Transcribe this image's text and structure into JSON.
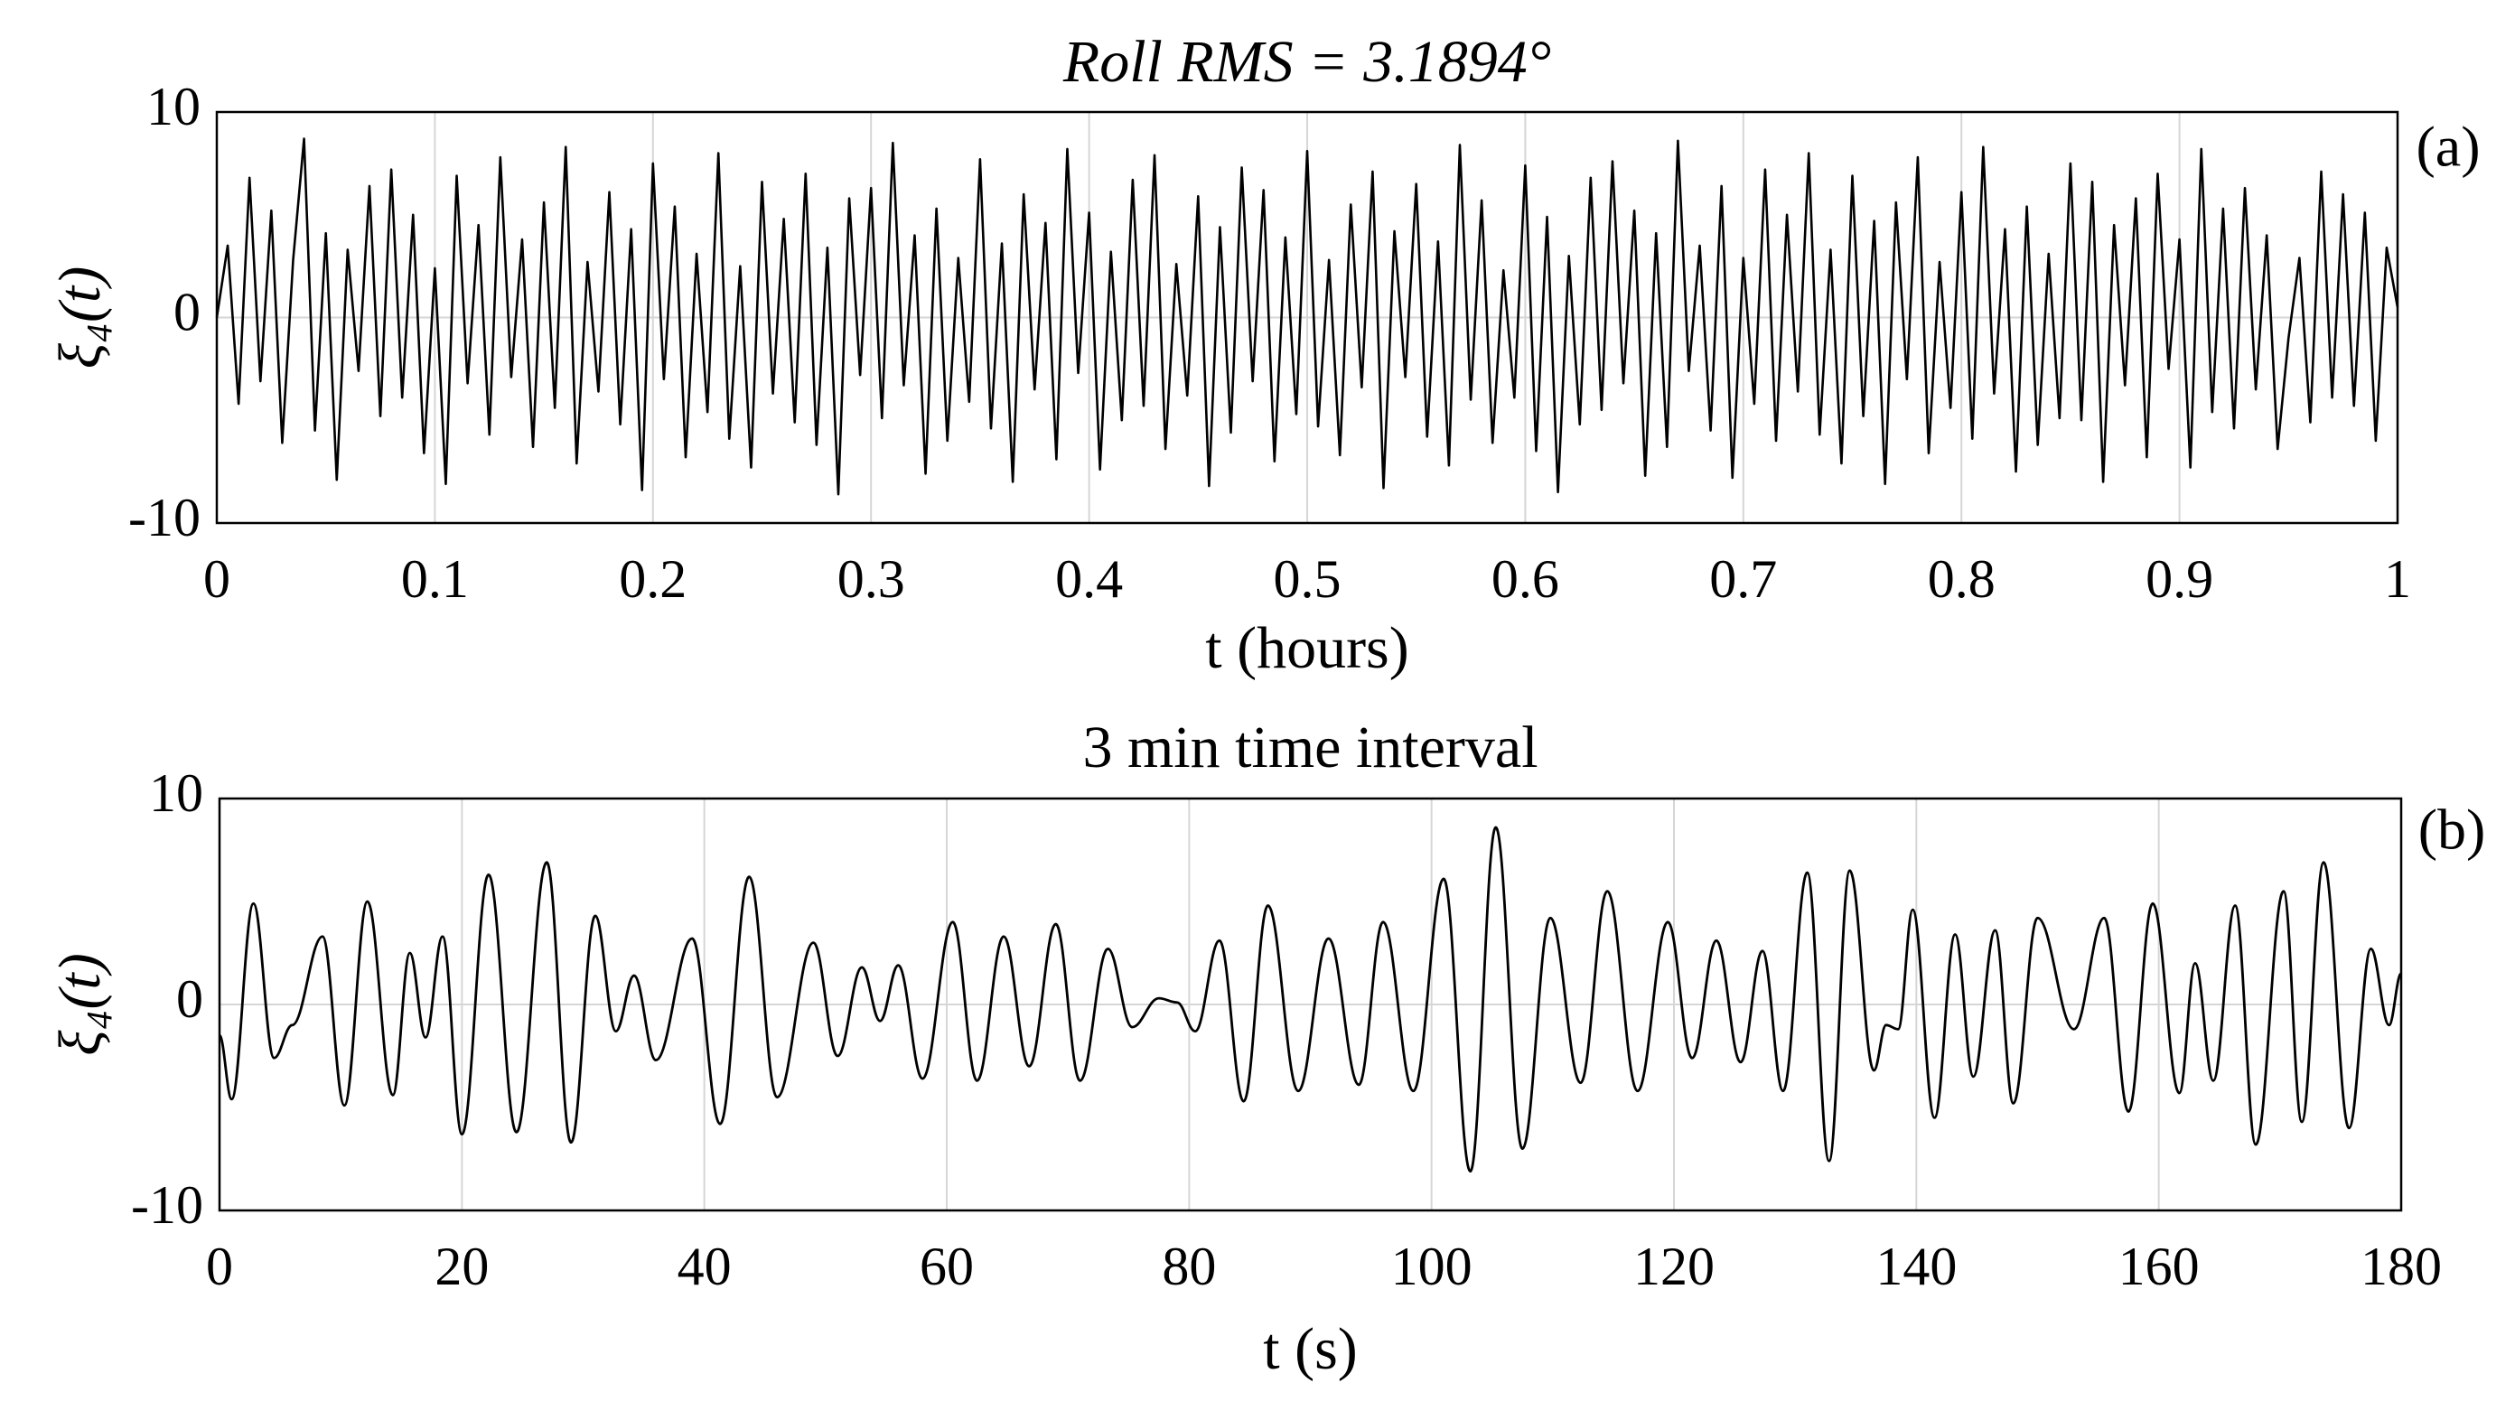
{
  "chart_data": [
    {
      "type": "line",
      "title": "Roll RMS = 3.1894°",
      "x_label": "t (hours)",
      "y_label": "ξ₄(t)",
      "annotation": "(a)",
      "grid": true,
      "xlim": [
        0,
        1
      ],
      "ylim": [
        -10,
        10
      ],
      "xticks": [
        0,
        0.1,
        0.2,
        0.3,
        0.4,
        0.5,
        0.6,
        0.7,
        0.8,
        0.9,
        1
      ],
      "yticks": [
        -10,
        0,
        10
      ],
      "x": [
        0,
        0.005,
        0.01,
        0.015,
        0.02,
        0.025,
        0.03,
        0.035,
        0.04,
        0.045,
        0.05,
        0.055,
        0.06,
        0.065,
        0.07,
        0.075,
        0.08,
        0.085,
        0.09,
        0.095,
        0.1,
        0.105,
        0.11,
        0.115,
        0.12,
        0.125,
        0.13,
        0.135,
        0.14,
        0.145,
        0.15,
        0.155,
        0.16,
        0.165,
        0.17,
        0.175,
        0.18,
        0.185,
        0.19,
        0.195,
        0.2,
        0.205,
        0.21,
        0.215,
        0.22,
        0.225,
        0.23,
        0.235,
        0.24,
        0.245,
        0.25,
        0.255,
        0.26,
        0.265,
        0.27,
        0.275,
        0.28,
        0.285,
        0.29,
        0.295,
        0.3,
        0.305,
        0.31,
        0.315,
        0.32,
        0.325,
        0.33,
        0.335,
        0.34,
        0.345,
        0.35,
        0.355,
        0.36,
        0.365,
        0.37,
        0.375,
        0.38,
        0.385,
        0.39,
        0.395,
        0.4,
        0.405,
        0.41,
        0.415,
        0.42,
        0.425,
        0.43,
        0.435,
        0.44,
        0.445,
        0.45,
        0.455,
        0.46,
        0.465,
        0.47,
        0.475,
        0.48,
        0.485,
        0.49,
        0.495,
        0.5,
        0.505,
        0.51,
        0.515,
        0.52,
        0.525,
        0.53,
        0.535,
        0.54,
        0.545,
        0.55,
        0.555,
        0.56,
        0.565,
        0.57,
        0.575,
        0.58,
        0.585,
        0.59,
        0.595,
        0.6,
        0.605,
        0.61,
        0.615,
        0.62,
        0.625,
        0.63,
        0.635,
        0.64,
        0.645,
        0.65,
        0.655,
        0.66,
        0.665,
        0.67,
        0.675,
        0.68,
        0.685,
        0.69,
        0.695,
        0.7,
        0.705,
        0.71,
        0.715,
        0.72,
        0.725,
        0.73,
        0.735,
        0.74,
        0.745,
        0.75,
        0.755,
        0.76,
        0.765,
        0.77,
        0.775,
        0.78,
        0.785,
        0.79,
        0.795,
        0.8,
        0.805,
        0.81,
        0.815,
        0.82,
        0.825,
        0.83,
        0.835,
        0.84,
        0.845,
        0.85,
        0.855,
        0.86,
        0.865,
        0.87,
        0.875,
        0.88,
        0.885,
        0.89,
        0.895,
        0.9,
        0.905,
        0.91,
        0.915,
        0.92,
        0.925,
        0.93,
        0.935,
        0.94,
        0.945,
        0.95,
        0.955,
        0.96,
        0.965,
        0.97,
        0.975,
        0.98,
        0.985,
        0.99,
        0.995,
        1
      ],
      "series": [
        {
          "name": "ξ4",
          "color": "#000000",
          "values": [
            0,
            3.5,
            -4.2,
            6.8,
            -3.1,
            5.2,
            -6.1,
            2.8,
            8.7,
            -5.5,
            4.1,
            -7.9,
            3.3,
            -2.6,
            6.4,
            -4.8,
            7.2,
            -3.9,
            5.0,
            -6.6,
            2.4,
            -8.1,
            6.9,
            -3.2,
            4.5,
            -5.7,
            7.8,
            -2.9,
            3.8,
            -6.3,
            5.6,
            -4.4,
            8.3,
            -7.1,
            2.7,
            -3.6,
            6.1,
            -5.2,
            4.3,
            -8.4,
            7.5,
            -3.0,
            5.4,
            -6.8,
            3.1,
            -4.6,
            8.0,
            -5.9,
            2.5,
            -7.3,
            6.6,
            -3.7,
            4.8,
            -5.1,
            7.0,
            -6.2,
            3.4,
            -8.6,
            5.8,
            -2.8,
            6.3,
            -4.9,
            8.5,
            -3.3,
            4.0,
            -7.6,
            5.3,
            -6.0,
            2.9,
            -4.1,
            7.7,
            -5.4,
            3.6,
            -8.0,
            6.0,
            -3.5,
            4.6,
            -6.9,
            8.2,
            -2.7,
            5.1,
            -7.4,
            3.2,
            -5.0,
            6.7,
            -4.3,
            7.9,
            -6.4,
            2.6,
            -3.8,
            5.9,
            -8.2,
            4.4,
            -5.6,
            7.3,
            -3.1,
            6.2,
            -7.0,
            3.9,
            -4.7,
            8.1,
            -5.3,
            2.8,
            -6.7,
            5.5,
            -3.4,
            7.1,
            -8.3,
            4.2,
            -2.9,
            6.5,
            -5.8,
            3.7,
            -7.2,
            8.4,
            -4.0,
            5.7,
            -6.1,
            2.3,
            -3.9,
            7.4,
            -6.5,
            4.9,
            -8.5,
            3.0,
            -5.2,
            6.8,
            -4.5,
            7.6,
            -3.2,
            5.2,
            -7.7,
            4.1,
            -6.3,
            8.6,
            -2.6,
            3.5,
            -5.5,
            6.4,
            -7.8,
            2.9,
            -4.2,
            7.2,
            -6.0,
            5.0,
            -3.6,
            8.0,
            -5.7,
            3.3,
            -7.1,
            6.9,
            -4.8,
            4.7,
            -8.1,
            5.6,
            -3.0,
            7.8,
            -6.6,
            2.7,
            -4.4,
            6.1,
            -5.9,
            8.3,
            -3.7,
            4.3,
            -7.5,
            5.4,
            -6.2,
            3.1,
            -4.9,
            7.5,
            -5.0,
            6.6,
            -8.0,
            4.5,
            -3.3,
            5.8,
            -6.8,
            7.0,
            -2.5,
            3.8,
            -7.3,
            8.2,
            -4.6,
            5.3,
            -5.4,
            6.3,
            -3.5,
            4.0,
            -6.4,
            -1.0,
            2.9,
            -5.1,
            7.1,
            -3.9,
            6.0,
            -4.3,
            5.1,
            -6.0,
            3.4,
            0.5
          ]
        }
      ]
    },
    {
      "type": "line",
      "title": "3 min  time interval",
      "x_label": "t (s)",
      "y_label": "ξ₄(t)",
      "annotation": "(b)",
      "grid": true,
      "smooth": true,
      "xlim": [
        0,
        180
      ],
      "ylim": [
        -10,
        10
      ],
      "xticks": [
        0,
        20,
        40,
        60,
        80,
        100,
        120,
        140,
        160,
        180
      ],
      "yticks": [
        -10,
        0,
        10
      ],
      "x": [
        0,
        1,
        2.8,
        4.5,
        6,
        8.5,
        10.3,
        12.2,
        14.3,
        15.7,
        17,
        18.4,
        20,
        22.2,
        24.5,
        27,
        29,
        31,
        32.7,
        34.2,
        36,
        39,
        41.3,
        43.7,
        46,
        49,
        51,
        53,
        54.5,
        56,
        58,
        60.5,
        62.5,
        64.7,
        66.8,
        69,
        71,
        73.3,
        75.3,
        77.5,
        79,
        80.5,
        82.5,
        84.5,
        86.5,
        89,
        91.5,
        94,
        96,
        98.5,
        101,
        103.2,
        105.3,
        107.5,
        109.8,
        112.3,
        114.5,
        117,
        119.5,
        121.5,
        123.5,
        125.5,
        127.3,
        129,
        131,
        132.8,
        134.5,
        136.5,
        137.5,
        138.5,
        139.7,
        141.5,
        143.2,
        144.7,
        146.5,
        148,
        150,
        153,
        155.5,
        157.5,
        159.5,
        161.7,
        163,
        164.5,
        166.3,
        168,
        170.3,
        171.8,
        173.6,
        175.7,
        177.5,
        179,
        180
      ],
      "series": [
        {
          "name": "ξ4",
          "color": "#000000",
          "values": [
            -1.5,
            -4.6,
            4.9,
            -2.6,
            -1,
            3.3,
            -4.9,
            5.0,
            -4.4,
            2.5,
            -1.6,
            3.3,
            -6.3,
            6.3,
            -6.2,
            6.9,
            -6.7,
            4.3,
            -1.3,
            1.4,
            -2.7,
            3.2,
            -5.8,
            6.2,
            -4.5,
            3.0,
            -2.5,
            1.8,
            -0.8,
            1.9,
            -3.6,
            4.0,
            -3.7,
            3.3,
            -3.0,
            3.9,
            -3.7,
            2.7,
            -1.1,
            0.3,
            0.1,
            -1.3,
            3.1,
            -4.7,
            4.8,
            -4.2,
            3.2,
            -3.9,
            4.0,
            -4.2,
            6.1,
            -8.1,
            8.6,
            -7.0,
            4.2,
            -3.8,
            5.5,
            -4.2,
            4.0,
            -2.6,
            3.1,
            -2.8,
            2.6,
            -4.2,
            6.4,
            -7.6,
            6.5,
            -3.2,
            -1.0,
            -1.2,
            4.6,
            -5.5,
            3.4,
            -3.5,
            3.6,
            -4.8,
            4.2,
            -1.2,
            4.2,
            -5.2,
            4.9,
            -4.3,
            2.0,
            -3.7,
            4.8,
            -6.8,
            5.5,
            -5.7,
            6.9,
            -6.0,
            2.7,
            -1.0,
            1.5
          ]
        }
      ]
    }
  ]
}
